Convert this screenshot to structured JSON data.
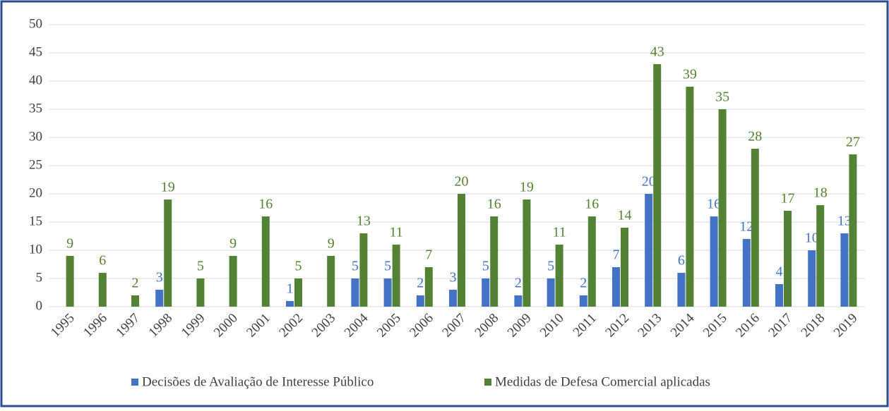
{
  "chart_data": {
    "type": "bar",
    "categories": [
      "1995",
      "1996",
      "1997",
      "1998",
      "1999",
      "2000",
      "2001",
      "2002",
      "2003",
      "2004",
      "2005",
      "2006",
      "2007",
      "2008",
      "2009",
      "2010",
      "2011",
      "2012",
      "2013",
      "2014",
      "2015",
      "2016",
      "2017",
      "2018",
      "2019"
    ],
    "series": [
      {
        "name": "Decisões de Avaliação de Interesse Público",
        "color": "#4472c4",
        "values": [
          null,
          null,
          null,
          3,
          null,
          null,
          null,
          1,
          null,
          5,
          5,
          2,
          3,
          5,
          2,
          5,
          2,
          7,
          20,
          6,
          16,
          12,
          4,
          10,
          13
        ]
      },
      {
        "name": "Medidas de Defesa Comercial aplicadas",
        "color": "#548235",
        "values": [
          9,
          6,
          2,
          19,
          5,
          9,
          16,
          5,
          9,
          13,
          11,
          7,
          20,
          16,
          19,
          11,
          16,
          14,
          43,
          39,
          35,
          28,
          17,
          18,
          27
        ]
      }
    ],
    "ylim": [
      0,
      50
    ],
    "yticks": [
      0,
      5,
      10,
      15,
      20,
      25,
      30,
      35,
      40,
      45,
      50
    ],
    "grid": true,
    "legend": "bottom"
  }
}
